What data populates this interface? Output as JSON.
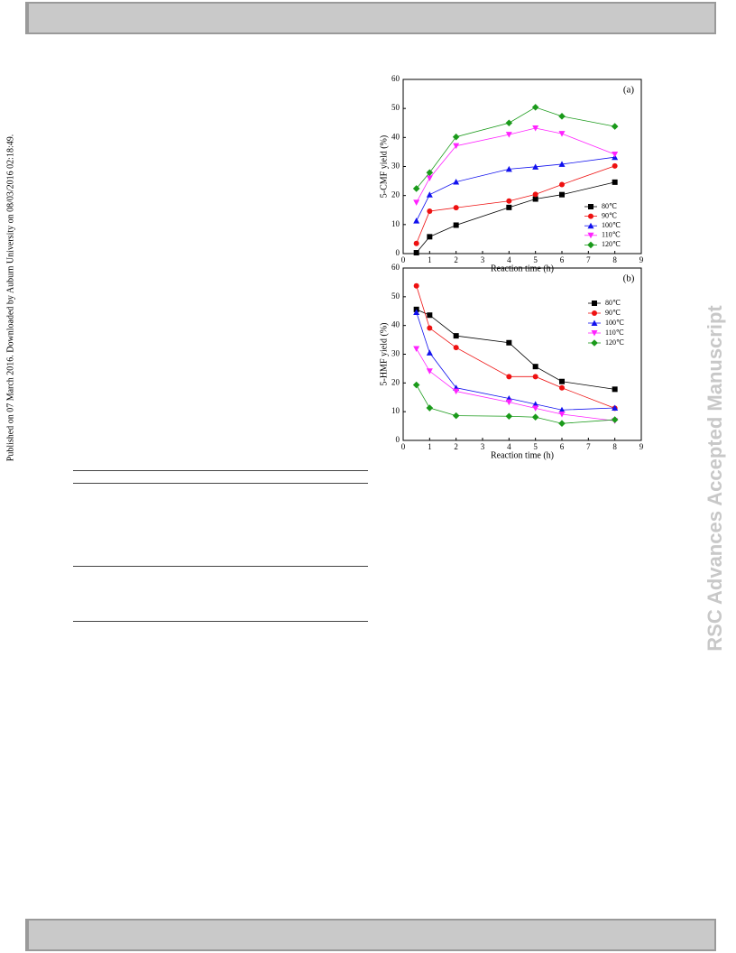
{
  "side_text": {
    "left": "Published on 07 March 2016. Downloaded by Auburn University on 08/03/2016 02:18:49.",
    "right": "RSC Advances Accepted Manuscript"
  },
  "chart_data": [
    {
      "type": "line",
      "panel_label": "(a)",
      "x_label": "Reaction time (h)",
      "y_label": "5-CMF yield (%)",
      "x": [
        0.5,
        1,
        2,
        4,
        5,
        6,
        8
      ],
      "xlim": [
        0,
        9
      ],
      "xticks": [
        0,
        1,
        2,
        3,
        4,
        5,
        6,
        7,
        8,
        9
      ],
      "ylim": [
        0,
        60
      ],
      "yticks": [
        0,
        10,
        20,
        30,
        40,
        50,
        60
      ],
      "series": [
        {
          "name": "80℃",
          "color": "#000000",
          "values": [
            0.3,
            5.8,
            9.8,
            15.9,
            18.8,
            20.3,
            24.6
          ]
        },
        {
          "name": "90℃",
          "color": "#ee1111",
          "values": [
            3.5,
            14.6,
            15.8,
            18.1,
            20.4,
            23.8,
            30.2
          ]
        },
        {
          "name": "100℃",
          "color": "#1111ee",
          "values": [
            11.3,
            20.3,
            24.7,
            29.1,
            29.9,
            30.8,
            33.2
          ]
        },
        {
          "name": "110℃",
          "color": "#ff22ff",
          "values": [
            17.6,
            26.0,
            37.1,
            41.0,
            43.2,
            41.3,
            34.2
          ]
        },
        {
          "name": "120℃",
          "color": "#1a9a1a",
          "values": [
            22.4,
            27.9,
            40.2,
            45.0,
            50.4,
            47.3,
            43.8
          ]
        }
      ]
    },
    {
      "type": "line",
      "panel_label": "(b)",
      "x_label": "Reaction time (h)",
      "y_label": "5-HMF yield (%)",
      "x": [
        0.5,
        1,
        2,
        4,
        5,
        6,
        8
      ],
      "xlim": [
        0,
        9
      ],
      "xticks": [
        0,
        1,
        2,
        3,
        4,
        5,
        6,
        7,
        8,
        9
      ],
      "ylim": [
        0,
        60
      ],
      "yticks": [
        0,
        10,
        20,
        30,
        40,
        50,
        60
      ],
      "series": [
        {
          "name": "80℃",
          "color": "#000000",
          "values": [
            45.6,
            43.6,
            36.4,
            34.0,
            25.7,
            20.5,
            17.8
          ]
        },
        {
          "name": "90℃",
          "color": "#ee1111",
          "values": [
            53.8,
            39.1,
            32.3,
            22.2,
            22.2,
            18.3,
            11.2
          ]
        },
        {
          "name": "100℃",
          "color": "#1111ee",
          "values": [
            44.6,
            30.5,
            18.3,
            14.6,
            12.6,
            10.6,
            11.3
          ]
        },
        {
          "name": "110℃",
          "color": "#ff22ff",
          "values": [
            31.9,
            24.1,
            17.1,
            13.3,
            11.2,
            9.1,
            6.8
          ]
        },
        {
          "name": "120℃",
          "color": "#1a9a1a",
          "values": [
            19.3,
            11.3,
            8.6,
            8.4,
            8.1,
            5.9,
            7.2
          ]
        }
      ]
    }
  ]
}
